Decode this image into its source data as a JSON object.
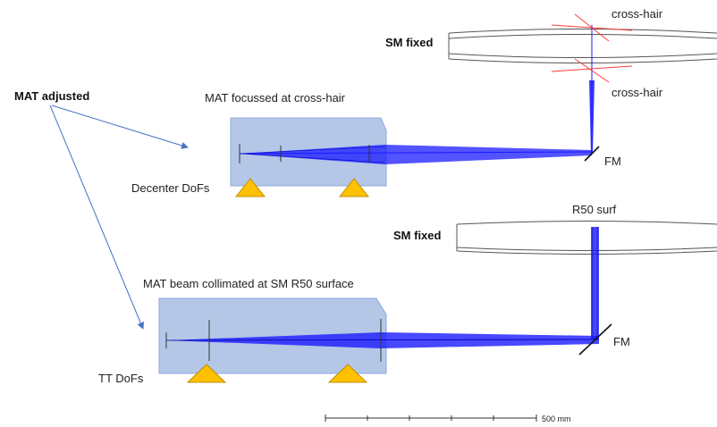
{
  "labels": {
    "cross_hair_top": "cross-hair",
    "cross_hair_bottom": "cross-hair",
    "sm_fixed_top": "SM fixed",
    "sm_fixed_bottom": "SM fixed",
    "mat_adjusted": "MAT adjusted",
    "mat_focussed": "MAT focussed at cross-hair",
    "decenter_dofs": "Decenter DoFs",
    "fm_top": "FM",
    "fm_bottom": "FM",
    "r50_surf": "R50 surf",
    "mat_collimated": "MAT beam collimated at SM R50 surface",
    "tt_dofs": "TT DoFs",
    "scale_bar": "500 mm"
  },
  "colors": {
    "mat_box_fill": "#b4c7e7",
    "mat_box_stroke": "#8faadc",
    "beam": "#1a1aff",
    "support": "#ffc000",
    "support_stroke": "#bf9000",
    "arrow": "#4472c4",
    "crosshair": "#ff3b3b",
    "mirror_outline": "#555555"
  }
}
